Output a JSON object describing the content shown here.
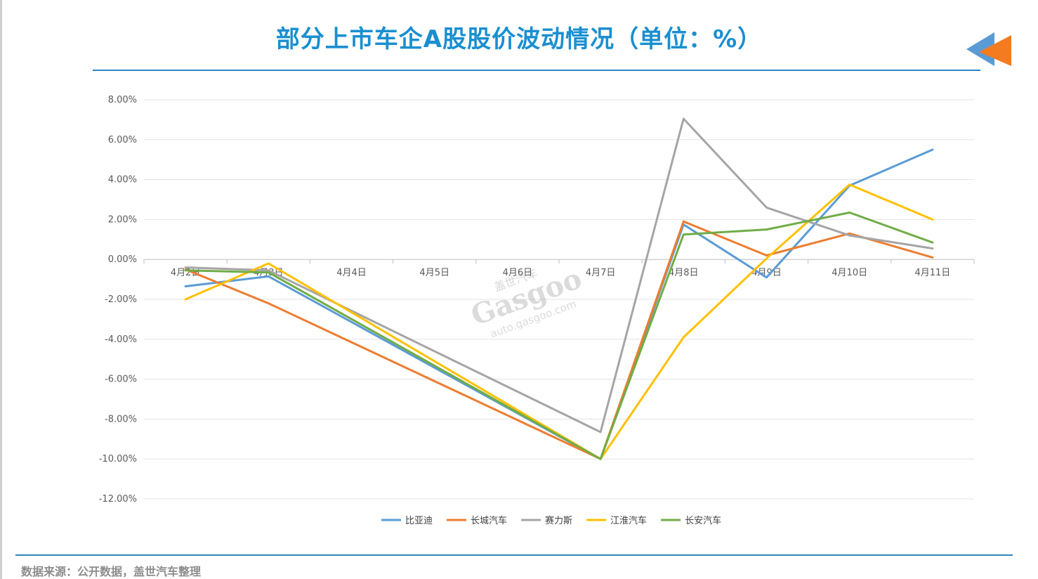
{
  "page": {
    "title": "部分上市车企A股股价波动情况（单位：%）",
    "source": "数据来源：公开数据，盖世汽车整理"
  },
  "watermark": {
    "text_cn": "盖世汽车",
    "brand": "Gasgoo",
    "url": "auto.gasgoo.com"
  },
  "colors": {
    "title": "#1a8fd0",
    "rule": "#2e86c1",
    "arrow_blue": "#5b9bd5",
    "arrow_orange": "#f47b20"
  },
  "chart_data": {
    "type": "line",
    "categories": [
      "4月2日",
      "4月3日",
      "4月4日",
      "4月5日",
      "4月6日",
      "4月7日",
      "4月8日",
      "4月9日",
      "4月10日",
      "4月11日"
    ],
    "y_ticks": [
      "8.00%",
      "6.00%",
      "4.00%",
      "2.00%",
      "0.00%",
      "-2.00%",
      "-4.00%",
      "-6.00%",
      "-8.00%",
      "-10.00%",
      "-12.00%"
    ],
    "ylim": [
      -12,
      8
    ],
    "grid": true,
    "legend_position": "bottom",
    "series": [
      {
        "name": "比亚迪",
        "color": "#5b9bd5",
        "values": [
          -1.35,
          -0.85,
          null,
          null,
          null,
          -10.0,
          1.75,
          -0.9,
          3.7,
          5.5
        ]
      },
      {
        "name": "长城汽车",
        "color": "#ed7d31",
        "values": [
          -0.5,
          -2.2,
          null,
          null,
          null,
          -10.0,
          1.9,
          0.2,
          1.3,
          0.1
        ]
      },
      {
        "name": "赛力斯",
        "color": "#a5a5a5",
        "values": [
          -0.4,
          -0.55,
          null,
          null,
          null,
          -8.65,
          7.05,
          2.6,
          1.2,
          0.55
        ]
      },
      {
        "name": "江淮汽车",
        "color": "#ffc000",
        "values": [
          -2.0,
          -0.2,
          null,
          null,
          null,
          -10.0,
          -3.9,
          0.05,
          3.75,
          2.0
        ]
      },
      {
        "name": "长安汽车",
        "color": "#70ad47",
        "values": [
          -0.55,
          -0.65,
          null,
          null,
          null,
          -10.0,
          1.25,
          1.5,
          2.35,
          0.85
        ]
      }
    ]
  }
}
